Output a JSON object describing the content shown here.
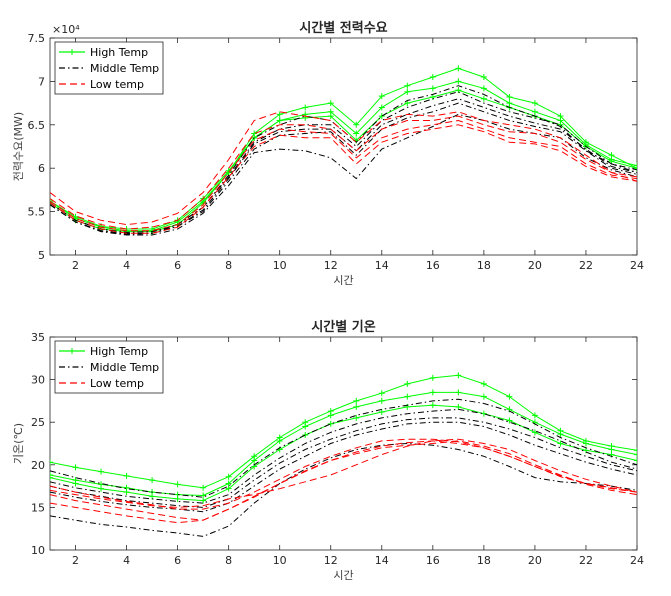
{
  "chart_data": [
    {
      "type": "line",
      "title": "시간별 전력수요",
      "xlabel": "시간",
      "ylabel": "전력수요(MW)",
      "exponent_label": "×10⁴",
      "xlim": [
        1,
        24
      ],
      "ylim": [
        5,
        7.5
      ],
      "xticks": [
        2,
        4,
        6,
        8,
        10,
        12,
        14,
        16,
        18,
        20,
        22,
        24
      ],
      "yticks": [
        5,
        5.5,
        6,
        6.5,
        7,
        7.5
      ],
      "ytick_labels": [
        "5",
        "5.5",
        "6",
        "6.5",
        "7",
        "7.5"
      ],
      "grid": false,
      "legend_position": "top-left",
      "legend": [
        {
          "label": "High Temp",
          "color": "#00ff00",
          "dash": "",
          "marker": "plus"
        },
        {
          "label": "Middle Temp",
          "color": "#000000",
          "dash": "6,3,1.5,3",
          "marker": ""
        },
        {
          "label": "Low temp",
          "color": "#ff0000",
          "dash": "7,4",
          "marker": ""
        }
      ],
      "x": [
        1,
        2,
        3,
        4,
        5,
        6,
        7,
        8,
        9,
        10,
        11,
        12,
        13,
        14,
        15,
        16,
        17,
        18,
        19,
        20,
        21,
        22,
        23,
        24
      ],
      "series": [
        {
          "group": 0,
          "marker": true,
          "values": [
            5.6,
            5.4,
            5.3,
            5.27,
            5.27,
            5.35,
            5.6,
            5.95,
            6.4,
            6.62,
            6.7,
            6.75,
            6.5,
            6.83,
            6.95,
            7.05,
            7.15,
            7.05,
            6.82,
            6.75,
            6.6,
            6.3,
            6.15,
            6.0
          ]
        },
        {
          "group": 0,
          "marker": true,
          "values": [
            5.62,
            5.42,
            5.32,
            5.28,
            5.28,
            5.38,
            5.62,
            5.95,
            6.35,
            6.55,
            6.62,
            6.65,
            6.4,
            6.7,
            6.88,
            6.92,
            7.0,
            6.92,
            6.75,
            6.65,
            6.55,
            6.27,
            6.1,
            6.03
          ]
        },
        {
          "group": 0,
          "marker": true,
          "values": [
            5.62,
            5.44,
            5.33,
            5.3,
            5.3,
            5.4,
            5.65,
            5.97,
            6.35,
            6.55,
            6.58,
            6.6,
            6.32,
            6.6,
            6.75,
            6.82,
            6.9,
            6.8,
            6.7,
            6.6,
            6.5,
            6.25,
            6.08,
            6.0
          ]
        },
        {
          "group": 1,
          "marker": false,
          "values": [
            5.6,
            5.4,
            5.3,
            5.25,
            5.25,
            5.35,
            5.55,
            5.92,
            6.35,
            6.5,
            6.6,
            6.55,
            6.3,
            6.6,
            6.78,
            6.85,
            6.95,
            6.85,
            6.7,
            6.6,
            6.48,
            6.2,
            6.05,
            5.95
          ]
        },
        {
          "group": 1,
          "marker": false,
          "values": [
            5.6,
            5.4,
            5.3,
            5.26,
            5.27,
            5.35,
            5.55,
            5.9,
            6.3,
            6.45,
            6.5,
            6.5,
            6.25,
            6.55,
            6.7,
            6.8,
            6.88,
            6.75,
            6.65,
            6.58,
            6.5,
            6.25,
            6.05,
            5.98
          ]
        },
        {
          "group": 1,
          "marker": false,
          "values": [
            5.58,
            5.38,
            5.28,
            5.24,
            5.25,
            5.33,
            5.52,
            5.88,
            6.28,
            6.42,
            6.45,
            6.45,
            6.2,
            6.5,
            6.62,
            6.72,
            6.8,
            6.7,
            6.6,
            6.52,
            6.45,
            6.22,
            6.02,
            5.95
          ]
        },
        {
          "group": 1,
          "marker": false,
          "values": [
            5.58,
            5.38,
            5.28,
            5.24,
            5.25,
            5.33,
            5.5,
            5.85,
            6.22,
            6.38,
            6.4,
            6.42,
            6.15,
            6.45,
            6.58,
            6.65,
            6.75,
            6.65,
            6.55,
            6.48,
            6.42,
            6.2,
            6.0,
            5.93
          ]
        },
        {
          "group": 1,
          "marker": false,
          "values": [
            5.58,
            5.38,
            5.27,
            5.23,
            5.23,
            5.3,
            5.48,
            5.8,
            6.18,
            6.22,
            6.2,
            6.12,
            5.88,
            6.22,
            6.35,
            6.48,
            6.62,
            6.55,
            6.45,
            6.4,
            6.35,
            6.12,
            5.98,
            5.9
          ]
        },
        {
          "group": 2,
          "marker": false,
          "values": [
            5.72,
            5.5,
            5.4,
            5.35,
            5.38,
            5.48,
            5.72,
            6.1,
            6.55,
            6.65,
            6.6,
            6.55,
            6.3,
            6.55,
            6.62,
            6.6,
            6.65,
            6.55,
            6.5,
            6.45,
            6.35,
            6.15,
            5.95,
            5.85
          ]
        },
        {
          "group": 2,
          "marker": false,
          "values": [
            5.65,
            5.45,
            5.35,
            5.3,
            5.32,
            5.4,
            5.65,
            6.0,
            6.4,
            6.5,
            6.5,
            6.45,
            6.2,
            6.45,
            6.55,
            6.55,
            6.6,
            6.5,
            6.42,
            6.4,
            6.3,
            6.1,
            5.95,
            5.9
          ]
        },
        {
          "group": 2,
          "marker": false,
          "values": [
            5.62,
            5.42,
            5.32,
            5.28,
            5.28,
            5.35,
            5.58,
            5.95,
            6.32,
            6.45,
            6.42,
            6.4,
            6.12,
            6.35,
            6.45,
            6.5,
            6.55,
            6.45,
            6.35,
            6.3,
            6.25,
            6.05,
            5.92,
            5.88
          ]
        },
        {
          "group": 2,
          "marker": false,
          "values": [
            5.6,
            5.4,
            5.3,
            5.25,
            5.25,
            5.32,
            5.55,
            5.9,
            6.25,
            6.38,
            6.35,
            6.35,
            6.05,
            6.3,
            6.4,
            6.45,
            6.5,
            6.42,
            6.3,
            6.28,
            6.2,
            6.02,
            5.9,
            5.85
          ]
        }
      ]
    },
    {
      "type": "line",
      "title": "시간별 기온",
      "xlabel": "시간",
      "ylabel": "기온(℃)",
      "xlim": [
        1,
        24
      ],
      "ylim": [
        10,
        35
      ],
      "xticks": [
        2,
        4,
        6,
        8,
        10,
        12,
        14,
        16,
        18,
        20,
        22,
        24
      ],
      "yticks": [
        10,
        15,
        20,
        25,
        30,
        35
      ],
      "ytick_labels": [
        "10",
        "15",
        "20",
        "25",
        "30",
        "35"
      ],
      "grid": false,
      "legend_position": "top-left",
      "legend": [
        {
          "label": "High Temp",
          "color": "#00ff00",
          "dash": "",
          "marker": "plus"
        },
        {
          "label": "Middle Temp",
          "color": "#000000",
          "dash": "6,3,1.5,3",
          "marker": ""
        },
        {
          "label": "Low temp",
          "color": "#ff0000",
          "dash": "7,4",
          "marker": ""
        }
      ],
      "x": [
        1,
        2,
        3,
        4,
        5,
        6,
        7,
        8,
        9,
        10,
        11,
        12,
        13,
        14,
        15,
        16,
        17,
        18,
        19,
        20,
        21,
        22,
        23,
        24
      ],
      "series": [
        {
          "group": 0,
          "marker": true,
          "values": [
            20.3,
            19.7,
            19.2,
            18.7,
            18.2,
            17.7,
            17.3,
            18.6,
            21.0,
            23.2,
            25.0,
            26.3,
            27.5,
            28.4,
            29.5,
            30.2,
            30.5,
            29.5,
            28.0,
            25.8,
            24.0,
            22.8,
            22.2,
            21.7
          ]
        },
        {
          "group": 0,
          "marker": true,
          "values": [
            18.8,
            18.2,
            17.7,
            17.3,
            16.8,
            16.5,
            16.4,
            17.8,
            20.5,
            22.8,
            24.5,
            25.8,
            26.8,
            27.5,
            28.0,
            28.5,
            28.5,
            28.0,
            26.5,
            25.0,
            23.6,
            22.5,
            21.8,
            21.2
          ]
        },
        {
          "group": 0,
          "marker": true,
          "values": [
            18.5,
            17.8,
            17.2,
            16.8,
            16.3,
            16.0,
            15.8,
            17.2,
            19.8,
            21.8,
            23.5,
            24.8,
            25.5,
            26.2,
            26.8,
            27.0,
            26.8,
            26.0,
            25.2,
            23.8,
            22.5,
            21.7,
            21.2,
            20.5
          ]
        },
        {
          "group": 1,
          "marker": false,
          "values": [
            19.3,
            18.5,
            17.8,
            17.2,
            16.8,
            16.5,
            16.2,
            17.5,
            20.0,
            22.0,
            23.5,
            24.8,
            25.8,
            26.5,
            27.0,
            27.5,
            27.7,
            27.2,
            26.3,
            24.8,
            23.2,
            22.0,
            21.0,
            20.0
          ]
        },
        {
          "group": 1,
          "marker": false,
          "values": [
            18.0,
            17.3,
            16.8,
            16.3,
            16.0,
            15.7,
            15.5,
            16.5,
            18.8,
            20.8,
            22.5,
            23.8,
            24.8,
            25.5,
            26.0,
            26.3,
            26.5,
            26.0,
            25.0,
            24.0,
            22.8,
            21.5,
            20.3,
            19.5
          ]
        },
        {
          "group": 1,
          "marker": false,
          "values": [
            17.5,
            16.8,
            16.3,
            15.8,
            15.5,
            15.2,
            15.0,
            16.0,
            18.2,
            20.2,
            21.8,
            23.0,
            24.0,
            24.8,
            25.3,
            25.5,
            25.5,
            25.0,
            24.2,
            23.2,
            22.0,
            21.0,
            20.0,
            19.3
          ]
        },
        {
          "group": 1,
          "marker": false,
          "values": [
            16.8,
            16.2,
            15.7,
            15.3,
            15.0,
            14.8,
            14.5,
            15.5,
            17.5,
            19.5,
            21.0,
            22.5,
            23.5,
            24.2,
            24.8,
            25.0,
            25.0,
            24.5,
            23.5,
            22.3,
            21.3,
            20.3,
            19.5,
            18.8
          ]
        },
        {
          "group": 1,
          "marker": false,
          "values": [
            14.0,
            13.5,
            13.0,
            12.7,
            12.3,
            12.0,
            11.6,
            12.8,
            15.5,
            17.8,
            19.5,
            20.8,
            21.8,
            22.3,
            22.5,
            22.3,
            21.8,
            21.0,
            19.8,
            18.5,
            18.0,
            17.8,
            17.5,
            17.0
          ]
        },
        {
          "group": 2,
          "marker": false,
          "values": [
            17.0,
            16.5,
            16.0,
            15.6,
            15.2,
            15.0,
            15.2,
            16.0,
            16.5,
            17.2,
            18.0,
            18.8,
            20.0,
            21.2,
            22.2,
            22.8,
            23.0,
            22.5,
            21.8,
            20.5,
            19.3,
            18.3,
            17.5,
            16.8
          ]
        },
        {
          "group": 2,
          "marker": false,
          "values": [
            16.5,
            15.8,
            15.3,
            14.8,
            14.3,
            13.8,
            13.5,
            14.8,
            16.3,
            17.8,
            19.2,
            20.5,
            21.5,
            22.2,
            22.6,
            22.8,
            22.5,
            22.0,
            21.0,
            19.8,
            18.7,
            17.8,
            17.2,
            16.8
          ]
        },
        {
          "group": 2,
          "marker": false,
          "values": [
            15.5,
            15.0,
            14.5,
            14.0,
            13.6,
            13.2,
            13.5,
            14.8,
            16.2,
            17.8,
            19.3,
            20.5,
            21.3,
            22.0,
            22.3,
            22.5,
            22.8,
            22.2,
            21.3,
            20.0,
            18.8,
            17.7,
            17.0,
            16.5
          ]
        },
        {
          "group": 2,
          "marker": false,
          "values": [
            17.5,
            16.8,
            16.2,
            15.7,
            15.3,
            14.8,
            14.8,
            15.5,
            16.8,
            18.3,
            19.8,
            21.0,
            22.0,
            22.8,
            23.0,
            23.0,
            22.7,
            22.0,
            21.0,
            19.8,
            18.6,
            17.8,
            17.3,
            16.8
          ]
        }
      ]
    }
  ]
}
